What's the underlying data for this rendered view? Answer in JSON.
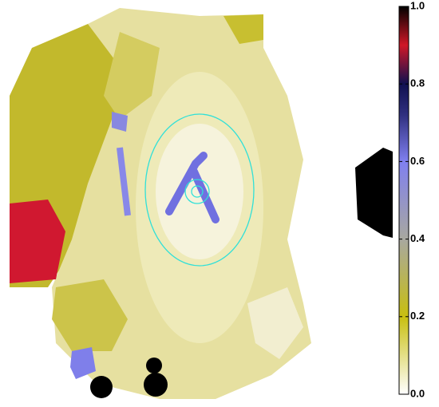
{
  "colorbar": {
    "clim": [
      0,
      1
    ],
    "ticks": [
      {
        "value": 0,
        "label": "0.0"
      },
      {
        "value": 0.2,
        "label": "0.2"
      },
      {
        "value": 0.4,
        "label": "0.4"
      },
      {
        "value": 0.6,
        "label": "0.6"
      },
      {
        "value": 0.8,
        "label": "0.8"
      },
      {
        "value": 1,
        "label": "1.0"
      }
    ]
  }
}
